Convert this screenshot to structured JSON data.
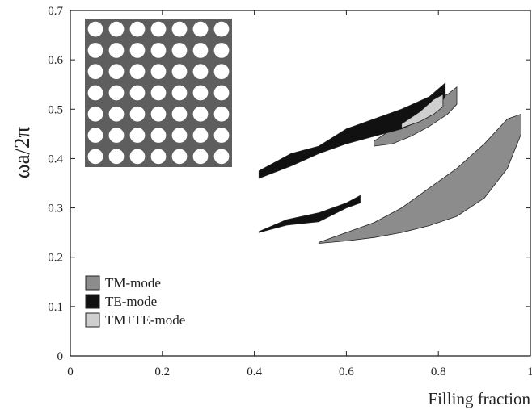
{
  "chart_data": {
    "type": "area",
    "xlabel": "Filling fraction",
    "ylabel": "ωa/2π",
    "xlim": [
      0,
      1
    ],
    "ylim": [
      0,
      0.7
    ],
    "x_ticks": [
      "0",
      "0.2",
      "0.4",
      "0.6",
      "0.8",
      "1"
    ],
    "y_ticks": [
      "0",
      "0.1",
      "0.2",
      "0.3",
      "0.4",
      "0.5",
      "0.6",
      "0.7"
    ],
    "grid": false,
    "legend_position": "bottom-left",
    "legend": [
      {
        "label": "TM-mode",
        "color": "#8c8c8c"
      },
      {
        "label": "TE-mode",
        "color": "#111111"
      },
      {
        "label": "TM+TE-mode",
        "color": "#cfcfcf"
      }
    ],
    "inset": {
      "description_icon": "square-lattice-of-air-holes",
      "rows": 7,
      "cols": 7,
      "background": "#5e5e5e",
      "hole_color": "#ffffff"
    },
    "series": [
      {
        "name": "TM-mode",
        "color": "#8c8c8c",
        "bands": [
          {
            "upper": [
              [
                0.54,
                0.23
              ],
              [
                0.6,
                0.25
              ],
              [
                0.66,
                0.27
              ],
              [
                0.72,
                0.3
              ],
              [
                0.78,
                0.34
              ],
              [
                0.84,
                0.38
              ],
              [
                0.9,
                0.43
              ],
              [
                0.95,
                0.48
              ],
              [
                0.98,
                0.49
              ]
            ],
            "lower": [
              [
                0.54,
                0.228
              ],
              [
                0.6,
                0.233
              ],
              [
                0.66,
                0.24
              ],
              [
                0.72,
                0.25
              ],
              [
                0.78,
                0.264
              ],
              [
                0.84,
                0.283
              ],
              [
                0.9,
                0.32
              ],
              [
                0.95,
                0.38
              ],
              [
                0.98,
                0.45
              ]
            ]
          },
          {
            "upper": [
              [
                0.66,
                0.435
              ],
              [
                0.7,
                0.46
              ],
              [
                0.74,
                0.48
              ],
              [
                0.78,
                0.515
              ],
              [
                0.82,
                0.53
              ],
              [
                0.84,
                0.545
              ]
            ],
            "lower": [
              [
                0.66,
                0.425
              ],
              [
                0.7,
                0.43
              ],
              [
                0.74,
                0.445
              ],
              [
                0.78,
                0.465
              ],
              [
                0.82,
                0.49
              ],
              [
                0.84,
                0.51
              ]
            ]
          }
        ]
      },
      {
        "name": "TE-mode",
        "color": "#111111",
        "bands": [
          {
            "upper": [
              [
                0.41,
                0.375
              ],
              [
                0.48,
                0.41
              ],
              [
                0.54,
                0.425
              ],
              [
                0.6,
                0.46
              ],
              [
                0.66,
                0.48
              ],
              [
                0.72,
                0.5
              ],
              [
                0.78,
                0.525
              ],
              [
                0.815,
                0.553
              ]
            ],
            "lower": [
              [
                0.41,
                0.36
              ],
              [
                0.48,
                0.385
              ],
              [
                0.54,
                0.41
              ],
              [
                0.6,
                0.43
              ],
              [
                0.66,
                0.445
              ],
              [
                0.72,
                0.46
              ],
              [
                0.78,
                0.485
              ],
              [
                0.815,
                0.525
              ]
            ]
          },
          {
            "upper": [
              [
                0.41,
                0.252
              ],
              [
                0.47,
                0.276
              ],
              [
                0.54,
                0.29
              ],
              [
                0.6,
                0.31
              ],
              [
                0.63,
                0.325
              ]
            ],
            "lower": [
              [
                0.41,
                0.25
              ],
              [
                0.47,
                0.265
              ],
              [
                0.54,
                0.272
              ],
              [
                0.6,
                0.3
              ],
              [
                0.63,
                0.31
              ]
            ]
          }
        ]
      },
      {
        "name": "TM+TE-mode",
        "color": "#cfcfcf",
        "bands": [
          {
            "upper": [
              [
                0.72,
                0.47
              ],
              [
                0.76,
                0.495
              ],
              [
                0.79,
                0.52
              ],
              [
                0.81,
                0.53
              ]
            ],
            "lower": [
              [
                0.72,
                0.462
              ],
              [
                0.76,
                0.475
              ],
              [
                0.79,
                0.49
              ],
              [
                0.81,
                0.505
              ]
            ]
          }
        ]
      }
    ]
  }
}
